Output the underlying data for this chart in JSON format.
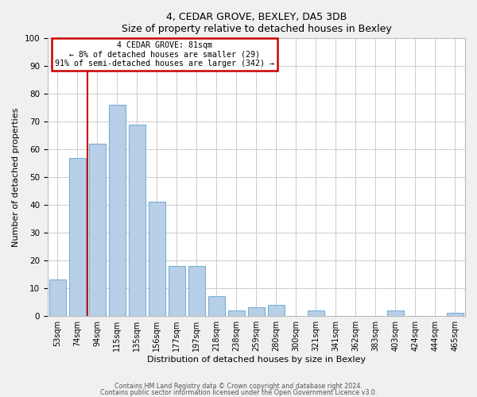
{
  "title": "4, CEDAR GROVE, BEXLEY, DA5 3DB",
  "subtitle": "Size of property relative to detached houses in Bexley",
  "xlabel": "Distribution of detached houses by size in Bexley",
  "ylabel": "Number of detached properties",
  "categories": [
    "53sqm",
    "74sqm",
    "94sqm",
    "115sqm",
    "135sqm",
    "156sqm",
    "177sqm",
    "197sqm",
    "218sqm",
    "238sqm",
    "259sqm",
    "280sqm",
    "300sqm",
    "321sqm",
    "341sqm",
    "362sqm",
    "383sqm",
    "403sqm",
    "424sqm",
    "444sqm",
    "465sqm"
  ],
  "values": [
    13,
    57,
    62,
    76,
    69,
    41,
    18,
    18,
    7,
    2,
    3,
    4,
    0,
    2,
    0,
    0,
    0,
    2,
    0,
    0,
    1
  ],
  "bar_color": "#b8cfe8",
  "bar_edge_color": "#7aafd4",
  "ylim": [
    0,
    100
  ],
  "yticks": [
    0,
    10,
    20,
    30,
    40,
    50,
    60,
    70,
    80,
    90,
    100
  ],
  "annotation_text_line1": "4 CEDAR GROVE: 81sqm",
  "annotation_text_line2": "← 8% of detached houses are smaller (29)",
  "annotation_text_line3": "91% of semi-detached houses are larger (342) →",
  "vline_color": "#cc0000",
  "footnote1": "Contains HM Land Registry data © Crown copyright and database right 2024.",
  "footnote2": "Contains public sector information licensed under the Open Government Licence v3.0.",
  "background_color": "#f0f0f0",
  "plot_background_color": "#ffffff",
  "grid_color": "#cccccc",
  "annotation_box_edge_color": "#cc0000",
  "title_fontsize": 9.5,
  "subtitle_fontsize": 8.5
}
